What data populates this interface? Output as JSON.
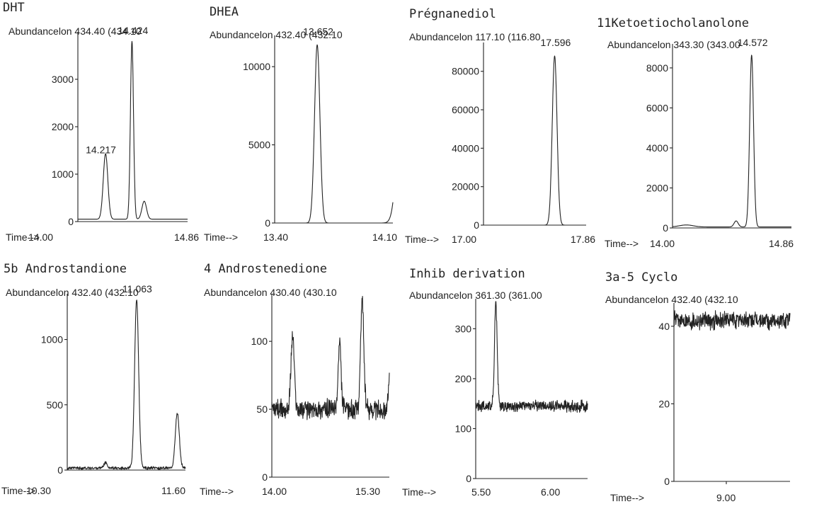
{
  "chart_data": [
    {
      "type": "line",
      "title": "DHT",
      "subtitle": "Abundancelon 434.40 (434.10",
      "xlabel": "Time-->",
      "x_ticks": [
        "14.00",
        "14.86"
      ],
      "y_ticks": [
        "0",
        "1000",
        "2000",
        "3000"
      ],
      "ylim": [
        0,
        4000
      ],
      "xlim": [
        14.0,
        14.86
      ],
      "peak_labels": [
        {
          "text": "14.424",
          "x": 14.424,
          "y": 3750
        },
        {
          "text": "14.217",
          "x": 14.217,
          "y": 1380
        }
      ],
      "series": [
        {
          "peaks": [
            {
              "x": 14.217,
              "y": 1380,
              "w": 0.018
            },
            {
              "x": 14.424,
              "y": 3750,
              "w": 0.012
            },
            {
              "x": 14.52,
              "y": 380,
              "w": 0.018
            }
          ],
          "baseline": 50,
          "noise": 0
        }
      ]
    },
    {
      "type": "line",
      "title": "DHEA",
      "subtitle": "Abundancelon 432.40 (432.10",
      "xlabel": "Time-->",
      "x_ticks": [
        "13.40",
        "14.10"
      ],
      "y_ticks": [
        "0",
        "5000",
        "10000"
      ],
      "ylim": [
        0,
        12000
      ],
      "xlim": [
        13.4,
        14.1
      ],
      "peak_labels": [
        {
          "text": "13.652",
          "x": 13.652,
          "y": 11400
        }
      ],
      "series": [
        {
          "peaks": [
            {
              "x": 13.652,
              "y": 11400,
              "w": 0.016
            },
            {
              "x": 14.16,
              "y": 9800,
              "w": 0.03
            }
          ],
          "baseline": 0,
          "noise": 0
        }
      ]
    },
    {
      "type": "line",
      "title": "Prégnanediol",
      "subtitle": "Abundancelon 117.10 (116.80",
      "xlabel": "Time-->",
      "x_ticks": [
        "17.00",
        "17.86"
      ],
      "y_ticks": [
        "0",
        "20000",
        "40000",
        "60000",
        "80000"
      ],
      "ylim": [
        0,
        95000
      ],
      "xlim": [
        17.0,
        17.86
      ],
      "peak_labels": [
        {
          "text": "17.596",
          "x": 17.596,
          "y": 88000
        }
      ],
      "series": [
        {
          "peaks": [
            {
              "x": 17.596,
              "y": 88000,
              "w": 0.02
            }
          ],
          "baseline": 0,
          "noise": 0
        }
      ]
    },
    {
      "type": "line",
      "title": "11Ketoetiocholanolone",
      "subtitle": "Abundancelon 343.30 (343.00",
      "xlabel": "Time-->",
      "x_ticks": [
        "14.00",
        "14.86"
      ],
      "y_ticks": [
        "0",
        "2000",
        "4000",
        "6000",
        "8000"
      ],
      "ylim": [
        0,
        9200
      ],
      "xlim": [
        14.0,
        14.86
      ],
      "peak_labels": [
        {
          "text": "14.572",
          "x": 14.572,
          "y": 8600
        }
      ],
      "series": [
        {
          "peaks": [
            {
              "x": 14.572,
              "y": 8600,
              "w": 0.014
            },
            {
              "x": 14.46,
              "y": 300,
              "w": 0.015
            },
            {
              "x": 14.1,
              "y": 100,
              "w": 0.05
            }
          ],
          "baseline": 50,
          "noise": 0
        }
      ]
    },
    {
      "type": "line",
      "title": "5b Androstandione",
      "subtitle": "Abundancelon 432.40 (432.10",
      "xlabel": "Time-->",
      "x_ticks": [
        "10.30",
        "11.60"
      ],
      "y_ticks": [
        "0",
        "500",
        "1000"
      ],
      "ylim": [
        0,
        1350
      ],
      "xlim": [
        10.3,
        11.6
      ],
      "peak_labels": [
        {
          "text": "11.063",
          "x": 11.063,
          "y": 1290
        }
      ],
      "series": [
        {
          "peaks": [
            {
              "x": 11.063,
              "y": 1290,
              "w": 0.022
            },
            {
              "x": 11.51,
              "y": 420,
              "w": 0.022
            },
            {
              "x": 10.72,
              "y": 40,
              "w": 0.02
            }
          ],
          "baseline": 15,
          "noise": 8
        }
      ]
    },
    {
      "type": "line",
      "title": "4 Androstenedione",
      "subtitle": "Abundancelon 430.40 (430.10",
      "xlabel": "Time-->",
      "x_ticks": [
        "14.00",
        "15.30"
      ],
      "y_ticks": [
        "0",
        "50",
        "100"
      ],
      "ylim": [
        0,
        135
      ],
      "xlim": [
        14.0,
        15.3
      ],
      "peak_labels": [],
      "series": [
        {
          "peaks": [
            {
              "x": 14.23,
              "y": 55,
              "w": 0.018
            },
            {
              "x": 14.75,
              "y": 48,
              "w": 0.016
            },
            {
              "x": 15.0,
              "y": 80,
              "w": 0.018
            },
            {
              "x": 15.33,
              "y": 80,
              "w": 0.02
            }
          ],
          "baseline": 50,
          "noise": 5
        }
      ]
    },
    {
      "type": "line",
      "title": "Inhib derivation",
      "subtitle": "Abundancelon 361.30 (361.00",
      "xlabel": "Time-->",
      "x_ticks": [
        "5.50",
        "6.00"
      ],
      "y_ticks": [
        "0",
        "100",
        "200",
        "300"
      ],
      "ylim": [
        0,
        360
      ],
      "xlim": [
        5.5,
        6.5
      ],
      "peak_labels": [],
      "series": [
        {
          "peaks": [
            {
              "x": 5.68,
              "y": 205,
              "w": 0.012
            }
          ],
          "baseline": 145,
          "noise": 8
        }
      ]
    },
    {
      "type": "line",
      "title": "3a-5 Cyclo",
      "subtitle": "Abundancelon 432.40 (432.10",
      "xlabel": "Time-->",
      "x_ticks": [
        "9.00"
      ],
      "y_ticks": [
        "0",
        "20",
        "40"
      ],
      "ylim": [
        0,
        46
      ],
      "xlim": [
        8.5,
        9.5
      ],
      "peak_labels": [],
      "series": [
        {
          "peaks": [],
          "baseline": 41.5,
          "noise": 1.6
        }
      ]
    }
  ]
}
